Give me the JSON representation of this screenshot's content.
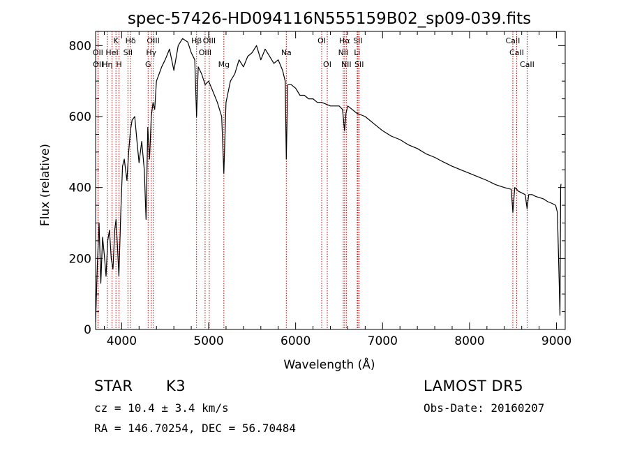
{
  "chart_data": {
    "type": "line",
    "title": "spec-57426-HD094116N555159B02_sp09-039.fits",
    "xlabel": "Wavelength (Å)",
    "ylabel": "Flux (relative)",
    "xlim": [
      3700,
      9100
    ],
    "ylim": [
      0,
      840
    ],
    "x_ticks": [
      4000,
      5000,
      6000,
      7000,
      8000,
      9000
    ],
    "y_ticks": [
      0,
      200,
      400,
      600,
      800
    ],
    "grid": false,
    "series": [
      {
        "x": [
          3700,
          3720,
          3740,
          3760,
          3780,
          3800,
          3820,
          3840,
          3860,
          3880,
          3900,
          3920,
          3935,
          3950,
          3968,
          3990,
          4010,
          4030,
          4060,
          4080,
          4100,
          4120,
          4150,
          4180,
          4200,
          4230,
          4260,
          4280,
          4300,
          4320,
          4340,
          4360,
          4380,
          4400,
          4430,
          4460,
          4500,
          4550,
          4600,
          4650,
          4700,
          4760,
          4800,
          4840,
          4861,
          4880,
          4920,
          4960,
          5000,
          5050,
          5100,
          5150,
          5175,
          5200,
          5250,
          5300,
          5350,
          5400,
          5450,
          5500,
          5550,
          5600,
          5650,
          5700,
          5750,
          5800,
          5850,
          5880,
          5893,
          5910,
          5950,
          6000,
          6050,
          6100,
          6150,
          6200,
          6250,
          6300,
          6350,
          6400,
          6450,
          6500,
          6540,
          6563,
          6580,
          6600,
          6650,
          6700,
          6750,
          6800,
          6900,
          7000,
          7100,
          7200,
          7300,
          7400,
          7500,
          7600,
          7700,
          7800,
          7900,
          8000,
          8100,
          8200,
          8300,
          8400,
          8480,
          8498,
          8520,
          8542,
          8560,
          8600,
          8640,
          8662,
          8680,
          8720,
          8760,
          8800,
          8850,
          8900,
          8950,
          8990,
          9010,
          9030,
          9040,
          9048,
          9052
        ],
        "y": [
          20,
          180,
          300,
          130,
          260,
          210,
          150,
          250,
          280,
          200,
          170,
          280,
          310,
          240,
          150,
          330,
          460,
          480,
          420,
          500,
          560,
          590,
          600,
          520,
          470,
          530,
          450,
          310,
          570,
          480,
          600,
          640,
          620,
          700,
          720,
          740,
          760,
          790,
          730,
          800,
          820,
          810,
          780,
          760,
          600,
          740,
          720,
          690,
          700,
          670,
          640,
          600,
          440,
          640,
          700,
          720,
          760,
          740,
          770,
          780,
          800,
          760,
          790,
          770,
          750,
          760,
          730,
          700,
          480,
          690,
          690,
          680,
          660,
          660,
          650,
          650,
          640,
          640,
          635,
          630,
          630,
          630,
          620,
          560,
          610,
          630,
          620,
          610,
          605,
          600,
          580,
          560,
          545,
          535,
          520,
          510,
          495,
          485,
          472,
          460,
          450,
          440,
          430,
          420,
          408,
          400,
          395,
          330,
          400,
          395,
          390,
          385,
          380,
          340,
          380,
          380,
          375,
          372,
          368,
          360,
          355,
          350,
          330,
          140,
          40,
          400,
          410
        ]
      }
    ],
    "line_markers": [
      {
        "label": "Hβ",
        "row": 1,
        "x": 4861
      },
      {
        "label": "K",
        "row": 1,
        "x": 3934
      },
      {
        "label": "Hδ",
        "row": 1,
        "x": 4102
      },
      {
        "label": "OIII",
        "row": 1,
        "x": 4363
      },
      {
        "label": "OIII",
        "row": 1,
        "x": 5007
      },
      {
        "label": "OI",
        "row": 1,
        "x": 6300
      },
      {
        "label": "Hα",
        "row": 1,
        "x": 6563
      },
      {
        "label": "SII",
        "row": 1,
        "x": 6717
      },
      {
        "label": "CaII",
        "row": 1,
        "x": 8498
      },
      {
        "label": "OII",
        "row": 2,
        "x": 3727
      },
      {
        "label": "HeI",
        "row": 2,
        "x": 3889
      },
      {
        "label": "SII",
        "row": 2,
        "x": 4072
      },
      {
        "label": "Hγ",
        "row": 2,
        "x": 4340
      },
      {
        "label": "OIII",
        "row": 2,
        "x": 4959
      },
      {
        "label": "Na",
        "row": 2,
        "x": 5893
      },
      {
        "label": "NII",
        "row": 2,
        "x": 6548
      },
      {
        "label": "Li",
        "row": 2,
        "x": 6708
      },
      {
        "label": "CaII",
        "row": 2,
        "x": 8542
      },
      {
        "label": "OII",
        "row": 3,
        "x": 3729
      },
      {
        "label": "Hη",
        "row": 3,
        "x": 3835
      },
      {
        "label": "H",
        "row": 3,
        "x": 3969
      },
      {
        "label": "G",
        "row": 3,
        "x": 4304
      },
      {
        "label": "Mg",
        "row": 3,
        "x": 5175
      },
      {
        "label": "OI",
        "row": 3,
        "x": 6364
      },
      {
        "label": "NII",
        "row": 3,
        "x": 6583
      },
      {
        "label": "SII",
        "row": 3,
        "x": 6731
      },
      {
        "label": "CaII",
        "row": 3,
        "x": 8662
      }
    ],
    "line_marker_color": "#c00000"
  },
  "info": {
    "object_class": "STAR",
    "subclass": "K3",
    "survey": "LAMOST DR5",
    "cz": "cz = 10.4 ± 3.4 km/s",
    "obs_date": "Obs-Date: 20160207",
    "coords": "RA = 146.70254, DEC =  56.70484"
  }
}
